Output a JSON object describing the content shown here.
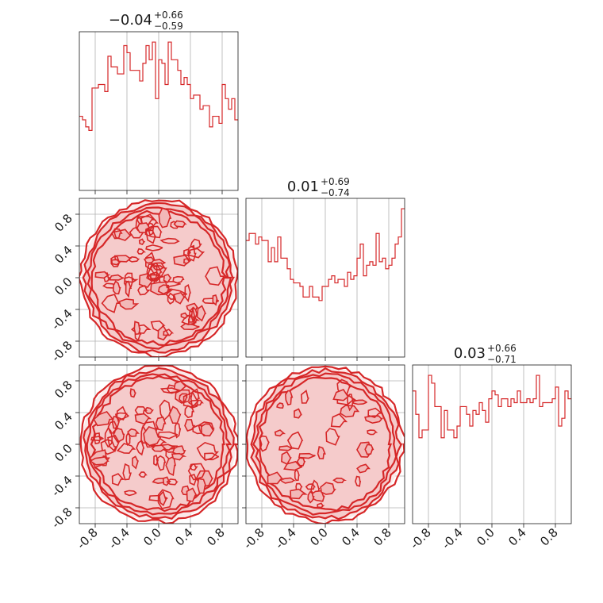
{
  "chart_data": {
    "type": "corner",
    "color": "#d62728",
    "fill_color": "#f2b8b8",
    "grid": true,
    "range": [
      -1,
      1
    ],
    "ticks": [
      "-0.8",
      "-0.4",
      "0.0",
      "0.4",
      "0.8"
    ],
    "tick_values": [
      -0.8,
      -0.4,
      0.0,
      0.4,
      0.8
    ],
    "parameters": [
      {
        "title_value": "−0.04",
        "err_plus": "+0.66",
        "err_minus": "−0.59",
        "histogram": {
          "bin_range": [
            -1,
            1
          ],
          "counts": [
            21,
            20,
            18,
            17,
            29,
            29,
            30,
            30,
            28,
            38,
            35,
            35,
            33,
            33,
            41,
            39,
            34,
            34,
            34,
            31,
            36,
            41,
            37,
            42,
            26,
            37,
            36,
            30,
            42,
            37,
            37,
            34,
            30,
            32,
            30,
            26,
            27,
            27,
            23,
            24,
            24,
            18,
            21,
            21,
            19,
            30,
            26,
            23,
            26,
            20
          ]
        }
      },
      {
        "title_value": "0.01",
        "err_plus": "+0.69",
        "err_minus": "−0.74",
        "histogram": {
          "bin_range": [
            -1,
            1
          ],
          "counts": [
            33,
            35,
            35,
            32,
            34,
            33,
            33,
            27,
            31,
            27,
            34,
            28,
            28,
            25,
            22,
            21,
            21,
            20,
            17,
            17,
            20,
            17,
            17,
            16,
            20,
            20,
            22,
            23,
            21,
            22,
            22,
            20,
            24,
            22,
            23,
            28,
            32,
            23,
            26,
            27,
            26,
            35,
            27,
            28,
            25,
            26,
            28,
            32,
            34,
            42
          ]
        }
      },
      {
        "title_value": "0.03",
        "err_plus": "+0.66",
        "err_minus": "−0.71",
        "histogram": {
          "bin_range": [
            -1,
            1
          ],
          "counts": [
            34,
            28,
            22,
            24,
            24,
            38,
            36,
            30,
            30,
            22,
            29,
            24,
            24,
            22,
            25,
            30,
            30,
            28,
            25,
            29,
            28,
            31,
            29,
            26,
            32,
            34,
            33,
            30,
            32,
            32,
            30,
            32,
            31,
            34,
            31,
            31,
            32,
            31,
            32,
            38,
            30,
            31,
            31,
            31,
            32,
            35,
            25,
            27,
            34,
            32
          ]
        }
      }
    ],
    "contour_panels": [
      {
        "x_param": 0,
        "y_param": 1
      },
      {
        "x_param": 0,
        "y_param": 2
      },
      {
        "x_param": 1,
        "y_param": 2
      }
    ]
  }
}
